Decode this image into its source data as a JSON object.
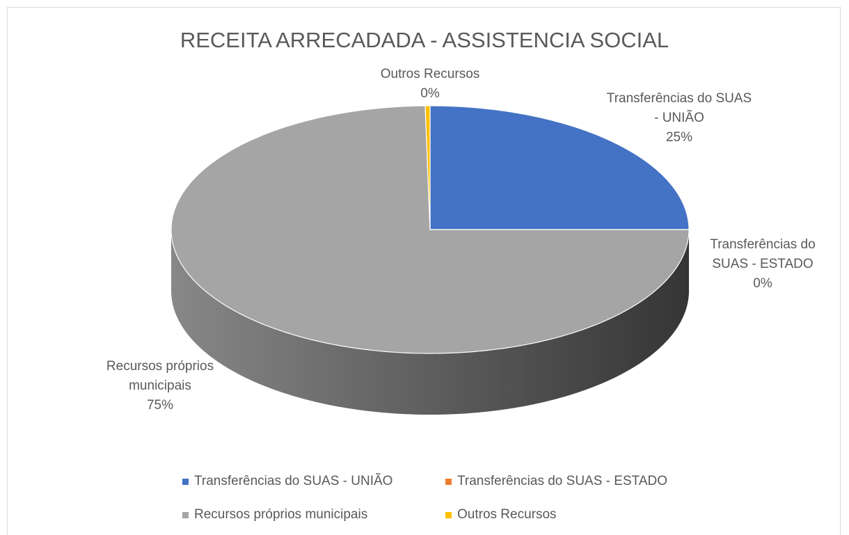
{
  "chart_data": {
    "type": "pie",
    "title": "RECEITA ARRECADADA - ASSISTENCIA SOCIAL",
    "categories": [
      "Transferências do SUAS - UNIÃO",
      "Transferências do SUAS - ESTADO",
      "Recursos próprios municipais",
      "Outros Recursos"
    ],
    "values": [
      25,
      0,
      74.7,
      0.3
    ],
    "value_labels": [
      "25%",
      "0%",
      "75%",
      "0%"
    ],
    "colors": [
      "#4472c4",
      "#ed7d31",
      "#a5a5a5",
      "#ffc000"
    ],
    "legend": "bottom"
  }
}
